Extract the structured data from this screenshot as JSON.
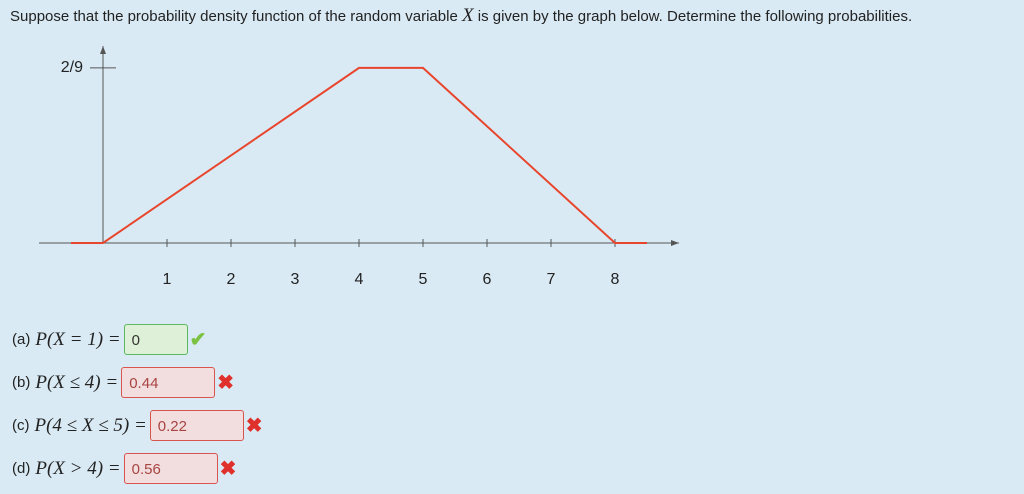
{
  "question": {
    "before": "Suppose that the probability density function of the random variable",
    "variable": "X",
    "after": "is given by the graph below. Determine the following probabilities."
  },
  "graph": {
    "type": "line",
    "x": [
      -0.5,
      0,
      4,
      5,
      8,
      8.5
    ],
    "y": [
      0,
      0,
      0.2222,
      0.2222,
      0,
      0
    ],
    "color": "#e8452c",
    "xlim": [
      -1,
      9
    ],
    "ylim": [
      0,
      0.25
    ],
    "xticks": [
      1,
      2,
      3,
      4,
      5,
      6,
      7,
      8
    ],
    "yticks": [
      {
        "value": 0.2222,
        "label": "2/9"
      }
    ]
  },
  "parts": [
    {
      "label": "(a)",
      "expression": "P(X = 1) =",
      "answer": "0",
      "status": "correct"
    },
    {
      "label": "(b)",
      "expression": "P(X ≤ 4) =",
      "answer": "0.44",
      "status": "incorrect"
    },
    {
      "label": "(c)",
      "expression": "P(4 ≤ X ≤ 5) =",
      "answer": "0.22",
      "status": "incorrect"
    },
    {
      "label": "(d)",
      "expression": "P(X > 4) =",
      "answer": "0.56",
      "status": "incorrect"
    }
  ]
}
